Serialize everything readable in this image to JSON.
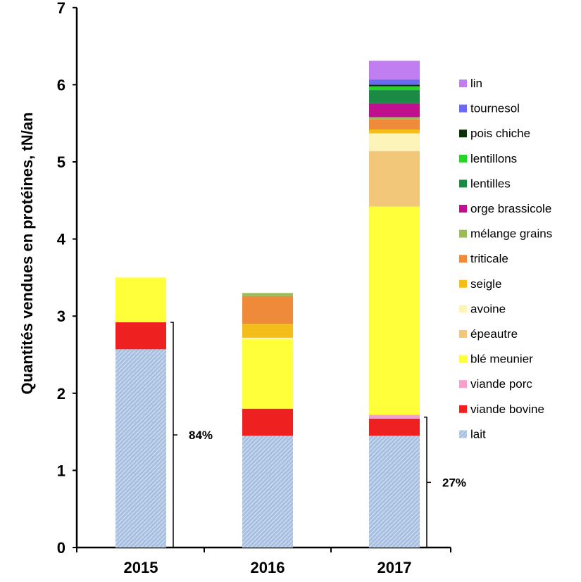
{
  "chart_data": {
    "type": "bar",
    "stacked": true,
    "ylabel": "Quantités vendues  en protéines, tN/an",
    "ylim": [
      0,
      7
    ],
    "yticks": [
      "0",
      "1",
      "2",
      "3",
      "4",
      "5",
      "6",
      "7"
    ],
    "categories": [
      "2015",
      "2016",
      "2017"
    ],
    "grid": false,
    "legend_position": "right",
    "series": [
      {
        "name": "lait",
        "color": "#a8bfe0",
        "values": [
          2.57,
          1.45,
          1.45
        ]
      },
      {
        "name": "viande bovine",
        "color": "#ee2020",
        "values": [
          0.35,
          0.35,
          0.22
        ]
      },
      {
        "name": "viande porc",
        "color": "#f4a0c8",
        "values": [
          0,
          0,
          0.05
        ]
      },
      {
        "name": "blé meunier",
        "color": "#ffff3a",
        "values": [
          0.58,
          0.9,
          2.7
        ]
      },
      {
        "name": "épeautre",
        "color": "#f2c77a",
        "values": [
          0,
          0,
          0.72
        ]
      },
      {
        "name": "avoine",
        "color": "#fcf4b8",
        "values": [
          0,
          0.02,
          0.23
        ]
      },
      {
        "name": "seigle",
        "color": "#f5bd1a",
        "values": [
          0,
          0.18,
          0.05
        ]
      },
      {
        "name": "triticale",
        "color": "#ef8a3a",
        "values": [
          0,
          0.36,
          0.13
        ]
      },
      {
        "name": "mélange grains",
        "color": "#9cbc58",
        "values": [
          0,
          0.04,
          0.03
        ]
      },
      {
        "name": "orge brassicole",
        "color": "#c0108f",
        "values": [
          0,
          0,
          0.18
        ]
      },
      {
        "name": "lentilles",
        "color": "#1a8a45",
        "values": [
          0,
          0,
          0.17
        ]
      },
      {
        "name": "lentillons",
        "color": "#28d428",
        "values": [
          0,
          0,
          0.05
        ]
      },
      {
        "name": "pois chiche",
        "color": "#0a300a",
        "values": [
          0,
          0,
          0.02
        ]
      },
      {
        "name": "tournesol",
        "color": "#6a6af0",
        "values": [
          0,
          0,
          0.07
        ]
      },
      {
        "name": "lin",
        "color": "#c07ef0",
        "values": [
          0,
          0,
          0.24
        ]
      }
    ],
    "annotations": [
      {
        "category": "2015",
        "label": "84%",
        "from": 0,
        "to": 2.92
      },
      {
        "category": "2017",
        "label": "27%",
        "from": 0,
        "to": 1.69
      }
    ]
  }
}
